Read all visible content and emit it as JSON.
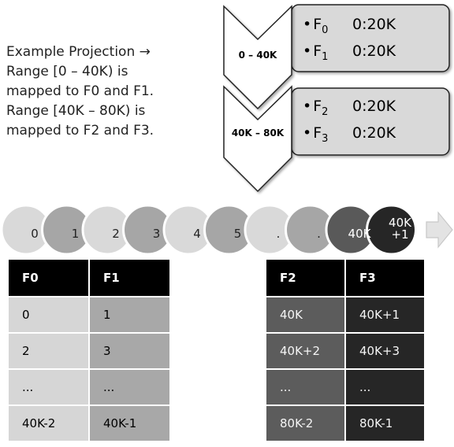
{
  "description": [
    "Example Projection →",
    "Range [0 – 40K) is",
    "mapped to F0 and F1.",
    "Range [40K – 80K) is",
    "mapped to F2 and F3."
  ],
  "ranges": [
    {
      "label": "0 – 40K",
      "entries": [
        {
          "bullet": "•",
          "field": "F",
          "sub": "0",
          "value": "0:20K"
        },
        {
          "bullet": "•",
          "field": "F",
          "sub": "1",
          "value": "0:20K"
        }
      ]
    },
    {
      "label": "40K – 80K",
      "entries": [
        {
          "bullet": "•",
          "field": "F",
          "sub": "2",
          "value": "0:20K"
        },
        {
          "bullet": "•",
          "field": "F",
          "sub": "3",
          "value": "0:20K"
        }
      ]
    }
  ],
  "sequence": {
    "items": [
      {
        "label": "0",
        "fill": "#d9d9d9"
      },
      {
        "label": "1",
        "fill": "#a6a6a6"
      },
      {
        "label": "2",
        "fill": "#d9d9d9"
      },
      {
        "label": "3",
        "fill": "#a6a6a6"
      },
      {
        "label": "4",
        "fill": "#d9d9d9"
      },
      {
        "label": "5",
        "fill": "#a6a6a6"
      },
      {
        "label": ".",
        "fill": "#d9d9d9"
      },
      {
        "label": ".",
        "fill": "#a6a6a6"
      },
      {
        "label": "40K",
        "fill": "#595959"
      },
      {
        "label": "40K +1",
        "fill": "#262626"
      }
    ],
    "arrow_icon": "right-arrow-icon"
  },
  "table_left": {
    "headers": [
      "F0",
      "F1"
    ],
    "rows": [
      [
        "0",
        "1"
      ],
      [
        "2",
        "3"
      ],
      [
        "...",
        "..."
      ],
      [
        "40K-2",
        "40K-1"
      ]
    ]
  },
  "table_right": {
    "headers": [
      "F2",
      "F3"
    ],
    "rows": [
      [
        "40K",
        "40K+1"
      ],
      [
        "40K+2",
        "40K+3"
      ],
      [
        "...",
        "..."
      ],
      [
        "80K-2",
        "80K-1"
      ]
    ]
  },
  "colors": {
    "box_fill": "#d9d9d9",
    "chevron_fill": "#ffffff",
    "header_fill": "#000000"
  }
}
